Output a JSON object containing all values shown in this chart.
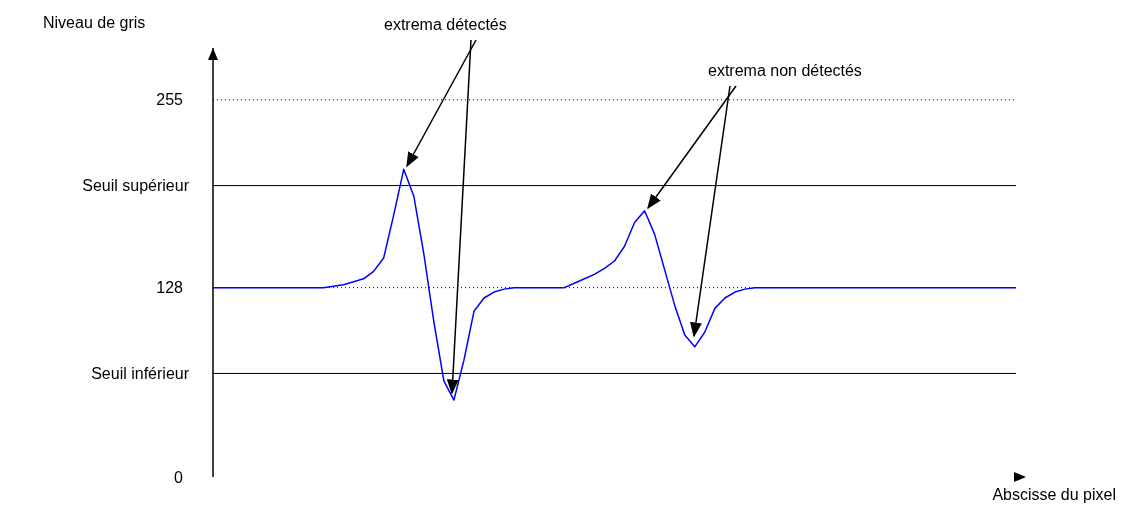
{
  "chart_data": {
    "type": "line",
    "xlabel": "Abscisse du pixel",
    "ylabel": "Niveau de gris",
    "categories": [
      null,
      null,
      null,
      null,
      null,
      null,
      null,
      null,
      null,
      null,
      null,
      null,
      null,
      null,
      null,
      null,
      null,
      null,
      null,
      null,
      null,
      null,
      null,
      null,
      null,
      null,
      null,
      null,
      null,
      null,
      null,
      null,
      null,
      null,
      null,
      null,
      null,
      null,
      null,
      null,
      null,
      null,
      null,
      null,
      null,
      null,
      null,
      null,
      null,
      null,
      null,
      null,
      null,
      null,
      null,
      null,
      null,
      null,
      null,
      null,
      null,
      null,
      null,
      null,
      null,
      null,
      null,
      null,
      null,
      null,
      null,
      null,
      null,
      null,
      null,
      null,
      null,
      null,
      null,
      null,
      null
    ],
    "series": [
      {
        "color": "#0000ff",
        "values": [
          128,
          128,
          128,
          128,
          128,
          128,
          128,
          128,
          128,
          128,
          128,
          128,
          129,
          130,
          132,
          134,
          139,
          148,
          177,
          208,
          190,
          151,
          105,
          65,
          52,
          79,
          112,
          121,
          125,
          127,
          128,
          128,
          128,
          128,
          128,
          128,
          131,
          134,
          137,
          141,
          146,
          156,
          172,
          180,
          164,
          140,
          116,
          96,
          88,
          98,
          114,
          121,
          125,
          127,
          128,
          128,
          128,
          128,
          128,
          128,
          128,
          128,
          128,
          128,
          128,
          128,
          128,
          128,
          128,
          128,
          128,
          128,
          128,
          128,
          128,
          128,
          128,
          128,
          128,
          128,
          128
        ]
      }
    ],
    "ylim": [
      0,
      290
    ],
    "yticks": [
      0,
      128,
      255
    ],
    "grid": false,
    "legend": false,
    "marker": "none",
    "line_style": "solid",
    "tick_labels": "y",
    "ref_lines": [
      {
        "axis": "y",
        "value": 255,
        "color": "#000000",
        "line_style": "dotted"
      },
      {
        "axis": "y",
        "value": 128,
        "color": "#000000",
        "line_style": "dotted"
      },
      {
        "axis": "y",
        "value": 197,
        "label": "Seuil supérieur",
        "color": "#000000",
        "line_style": "solid"
      },
      {
        "axis": "y",
        "value": 70,
        "label": "Seuil inférieur",
        "color": "#000000",
        "line_style": "solid"
      }
    ],
    "annotations": [
      "extrema détectés",
      "extrema non détectés"
    ]
  }
}
